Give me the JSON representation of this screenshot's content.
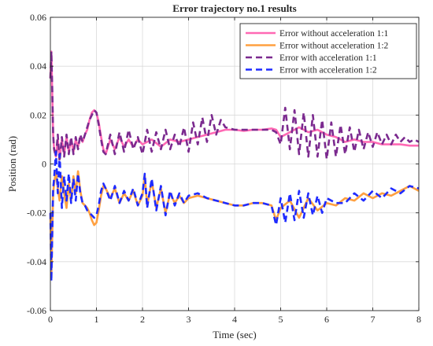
{
  "chart_data": {
    "type": "line",
    "title": "Error trajectory no.1 results",
    "xlabel": "Time (sec)",
    "ylabel": "Position (rad)",
    "xlim": [
      0,
      8
    ],
    "ylim": [
      -0.06,
      0.06
    ],
    "xticks": [
      0,
      1,
      2,
      3,
      4,
      5,
      6,
      7,
      8
    ],
    "xtick_labels": [
      "0",
      "1",
      "2",
      "3",
      "4",
      "5",
      "6",
      "7",
      "8"
    ],
    "yticks": [
      -0.06,
      -0.04,
      -0.02,
      0,
      0.02,
      0.04,
      0.06
    ],
    "ytick_labels": [
      "-0.06",
      "-0.04",
      "-0.02",
      "0",
      "0.02",
      "0.04",
      "0.06"
    ],
    "grid": true,
    "legend_position": "top-right",
    "series": [
      {
        "name": "Error without acceleration 1:1",
        "color": "#ff69b4",
        "style": "solid",
        "x": [
          0,
          0.02,
          0.04,
          0.06,
          0.08,
          0.12,
          0.16,
          0.2,
          0.25,
          0.3,
          0.35,
          0.4,
          0.45,
          0.5,
          0.55,
          0.6,
          0.65,
          0.7,
          0.75,
          0.8,
          0.85,
          0.9,
          0.95,
          1.0,
          1.05,
          1.1,
          1.15,
          1.2,
          1.3,
          1.4,
          1.5,
          1.6,
          1.7,
          1.8,
          1.9,
          2.0,
          2.2,
          2.4,
          2.6,
          2.8,
          3.0,
          3.2,
          3.4,
          3.6,
          3.8,
          4.0,
          4.2,
          4.4,
          4.6,
          4.8,
          4.9,
          5.0,
          5.2,
          5.4,
          5.6,
          5.8,
          6.0,
          6.2,
          6.4,
          6.6,
          6.8,
          7.0,
          7.2,
          7.4,
          7.6,
          7.8,
          8.0
        ],
        "y": [
          0.035,
          0.046,
          0.03,
          0.012,
          0.006,
          0.003,
          0.01,
          0.002,
          0.01,
          0.004,
          0.011,
          0.005,
          0.01,
          0.005,
          0.01,
          0.007,
          0.011,
          0.009,
          0.012,
          0.014,
          0.018,
          0.021,
          0.022,
          0.021,
          0.017,
          0.011,
          0.006,
          0.004,
          0.01,
          0.006,
          0.011,
          0.007,
          0.01,
          0.007,
          0.01,
          0.008,
          0.01,
          0.007,
          0.01,
          0.009,
          0.01,
          0.011,
          0.012,
          0.013,
          0.014,
          0.014,
          0.0135,
          0.014,
          0.014,
          0.0145,
          0.014,
          0.011,
          0.013,
          0.015,
          0.013,
          0.014,
          0.012,
          0.011,
          0.009,
          0.01,
          0.009,
          0.009,
          0.008,
          0.008,
          0.008,
          0.0075,
          0.0075
        ]
      },
      {
        "name": "Error without acceleration 1:2",
        "color": "#ffa040",
        "style": "solid",
        "x": [
          0,
          0.02,
          0.04,
          0.06,
          0.08,
          0.12,
          0.16,
          0.2,
          0.25,
          0.3,
          0.35,
          0.4,
          0.45,
          0.5,
          0.55,
          0.6,
          0.65,
          0.7,
          0.75,
          0.8,
          0.85,
          0.9,
          0.95,
          1.0,
          1.05,
          1.1,
          1.15,
          1.2,
          1.3,
          1.4,
          1.5,
          1.6,
          1.7,
          1.8,
          1.9,
          2.0,
          2.05,
          2.1,
          2.2,
          2.3,
          2.4,
          2.5,
          2.6,
          2.7,
          2.8,
          2.9,
          3.0,
          3.2,
          3.4,
          3.6,
          3.8,
          4.0,
          4.2,
          4.4,
          4.6,
          4.8,
          4.9,
          5.0,
          5.2,
          5.4,
          5.6,
          5.8,
          6.0,
          6.2,
          6.4,
          6.6,
          6.8,
          7.0,
          7.2,
          7.4,
          7.6,
          7.8,
          8.0
        ],
        "y": [
          -0.02,
          -0.046,
          -0.03,
          -0.012,
          -0.008,
          -0.003,
          -0.01,
          -0.015,
          -0.005,
          -0.012,
          -0.018,
          -0.008,
          -0.015,
          -0.005,
          -0.012,
          -0.003,
          -0.011,
          -0.016,
          -0.017,
          -0.018,
          -0.02,
          -0.023,
          -0.025,
          -0.024,
          -0.019,
          -0.013,
          -0.009,
          -0.01,
          -0.014,
          -0.01,
          -0.016,
          -0.012,
          -0.015,
          -0.011,
          -0.017,
          -0.013,
          -0.005,
          -0.017,
          -0.007,
          -0.018,
          -0.01,
          -0.02,
          -0.012,
          -0.016,
          -0.013,
          -0.016,
          -0.014,
          -0.013,
          -0.014,
          -0.015,
          -0.016,
          -0.017,
          -0.017,
          -0.016,
          -0.016,
          -0.017,
          -0.023,
          -0.018,
          -0.015,
          -0.022,
          -0.014,
          -0.019,
          -0.016,
          -0.017,
          -0.014,
          -0.015,
          -0.012,
          -0.014,
          -0.012,
          -0.013,
          -0.011,
          -0.009,
          -0.011
        ]
      },
      {
        "name": "Error with acceleration 1:1",
        "color": "#7b2a8f",
        "style": "dashed",
        "x": [
          0,
          0.02,
          0.04,
          0.06,
          0.08,
          0.12,
          0.16,
          0.2,
          0.25,
          0.3,
          0.35,
          0.4,
          0.45,
          0.5,
          0.55,
          0.6,
          0.65,
          0.7,
          0.75,
          0.8,
          0.85,
          0.9,
          0.95,
          1.0,
          1.05,
          1.1,
          1.15,
          1.2,
          1.3,
          1.4,
          1.5,
          1.6,
          1.7,
          1.8,
          1.9,
          2.0,
          2.1,
          2.2,
          2.3,
          2.4,
          2.5,
          2.6,
          2.7,
          2.8,
          2.9,
          3.0,
          3.1,
          3.2,
          3.3,
          3.4,
          3.5,
          3.6,
          3.7,
          3.8,
          4.0,
          4.2,
          4.4,
          4.6,
          4.8,
          4.9,
          5.0,
          5.1,
          5.2,
          5.3,
          5.4,
          5.5,
          5.6,
          5.7,
          5.8,
          5.9,
          6.0,
          6.1,
          6.2,
          6.3,
          6.4,
          6.5,
          6.6,
          6.7,
          6.8,
          6.9,
          7.0,
          7.1,
          7.2,
          7.3,
          7.4,
          7.5,
          7.6,
          7.7,
          7.8,
          7.9,
          8.0
        ],
        "y": [
          0.035,
          0.046,
          0.032,
          0.012,
          0.006,
          0.003,
          0.012,
          0.001,
          0.011,
          0.003,
          0.012,
          0.004,
          0.011,
          0.004,
          0.011,
          0.006,
          0.012,
          0.009,
          0.012,
          0.015,
          0.018,
          0.02,
          0.022,
          0.021,
          0.016,
          0.01,
          0.005,
          0.004,
          0.012,
          0.004,
          0.013,
          0.005,
          0.014,
          0.006,
          0.011,
          0.004,
          0.014,
          0.005,
          0.013,
          0.006,
          0.014,
          0.006,
          0.012,
          0.007,
          0.015,
          0.005,
          0.017,
          0.008,
          0.019,
          0.009,
          0.02,
          0.012,
          0.018,
          0.015,
          0.014,
          0.014,
          0.014,
          0.014,
          0.014,
          0.013,
          0.008,
          0.023,
          0.006,
          0.022,
          0.004,
          0.021,
          0.003,
          0.02,
          0.003,
          0.018,
          0.002,
          0.017,
          0.003,
          0.016,
          0.004,
          0.015,
          0.005,
          0.014,
          0.006,
          0.013,
          0.007,
          0.013,
          0.008,
          0.012,
          0.008,
          0.012,
          0.009,
          0.011,
          0.009,
          0.01,
          0.009
        ]
      },
      {
        "name": "Error with acceleration 1:2",
        "color": "#1f2bff",
        "style": "dashed",
        "x": [
          0,
          0.02,
          0.04,
          0.06,
          0.08,
          0.12,
          0.16,
          0.2,
          0.25,
          0.3,
          0.35,
          0.4,
          0.45,
          0.5,
          0.55,
          0.6,
          0.65,
          0.7,
          0.75,
          0.8,
          0.85,
          0.9,
          0.95,
          1.0,
          1.05,
          1.1,
          1.15,
          1.2,
          1.3,
          1.4,
          1.5,
          1.6,
          1.7,
          1.8,
          1.9,
          2.0,
          2.05,
          2.1,
          2.2,
          2.3,
          2.4,
          2.5,
          2.6,
          2.7,
          2.8,
          2.9,
          3.0,
          3.2,
          3.4,
          3.6,
          3.8,
          4.0,
          4.2,
          4.4,
          4.6,
          4.8,
          4.9,
          5.0,
          5.1,
          5.2,
          5.3,
          5.4,
          5.5,
          5.6,
          5.7,
          5.8,
          5.9,
          6.0,
          6.2,
          6.4,
          6.6,
          6.8,
          7.0,
          7.2,
          7.4,
          7.6,
          7.8,
          8.0
        ],
        "y": [
          -0.02,
          -0.048,
          -0.03,
          -0.01,
          -0.006,
          0.005,
          -0.012,
          0.004,
          -0.018,
          -0.005,
          -0.015,
          -0.004,
          -0.016,
          -0.006,
          -0.015,
          -0.004,
          -0.012,
          -0.016,
          -0.017,
          -0.019,
          -0.02,
          -0.021,
          -0.022,
          -0.021,
          -0.017,
          -0.011,
          -0.008,
          -0.01,
          -0.015,
          -0.009,
          -0.016,
          -0.011,
          -0.015,
          -0.01,
          -0.017,
          -0.012,
          -0.004,
          -0.018,
          -0.006,
          -0.019,
          -0.009,
          -0.021,
          -0.011,
          -0.017,
          -0.012,
          -0.016,
          -0.013,
          -0.012,
          -0.014,
          -0.015,
          -0.016,
          -0.017,
          -0.017,
          -0.016,
          -0.016,
          -0.017,
          -0.025,
          -0.014,
          -0.024,
          -0.012,
          -0.023,
          -0.011,
          -0.022,
          -0.012,
          -0.021,
          -0.013,
          -0.02,
          -0.014,
          -0.016,
          -0.016,
          -0.012,
          -0.015,
          -0.011,
          -0.014,
          -0.01,
          -0.012,
          -0.009,
          -0.01
        ]
      }
    ]
  }
}
